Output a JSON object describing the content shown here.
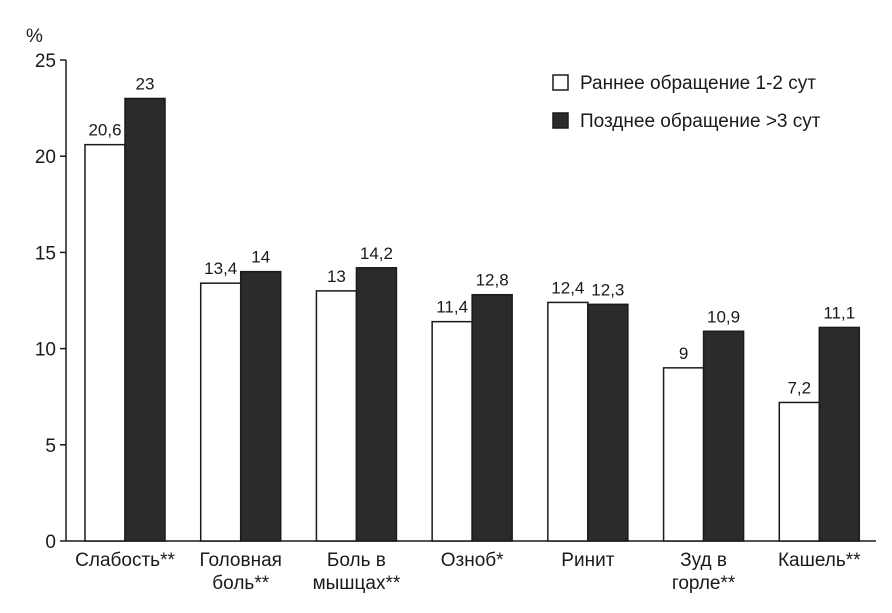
{
  "chart_data": {
    "type": "bar",
    "ylabel": "%",
    "ylim": [
      0,
      25
    ],
    "yticks": [
      0,
      5,
      10,
      15,
      20,
      25
    ],
    "grid": false,
    "legend_position": "top-right",
    "categories": [
      [
        "Слабость**"
      ],
      [
        "Головная",
        "боль**"
      ],
      [
        "Боль в",
        "мышцах**"
      ],
      [
        "Озноб*"
      ],
      [
        "Ринит"
      ],
      [
        "Зуд в",
        "горле**"
      ],
      [
        "Кашель**"
      ]
    ],
    "series": [
      {
        "name": "Раннее обращение 1-2 сут",
        "color": "#ffffff",
        "values": [
          20.6,
          13.4,
          13,
          11.4,
          12.4,
          9,
          7.2
        ],
        "labels": [
          "20,6",
          "13,4",
          "13",
          "11,4",
          "12,4",
          "9",
          "7,2"
        ]
      },
      {
        "name": "Позднее обращение >3 сут",
        "color": "#2b2b2b",
        "values": [
          23,
          14,
          14.2,
          12.8,
          12.3,
          10.9,
          11.1
        ],
        "labels": [
          "23",
          "14",
          "14,2",
          "12,8",
          "12,3",
          "10,9",
          "11,1"
        ]
      }
    ]
  }
}
